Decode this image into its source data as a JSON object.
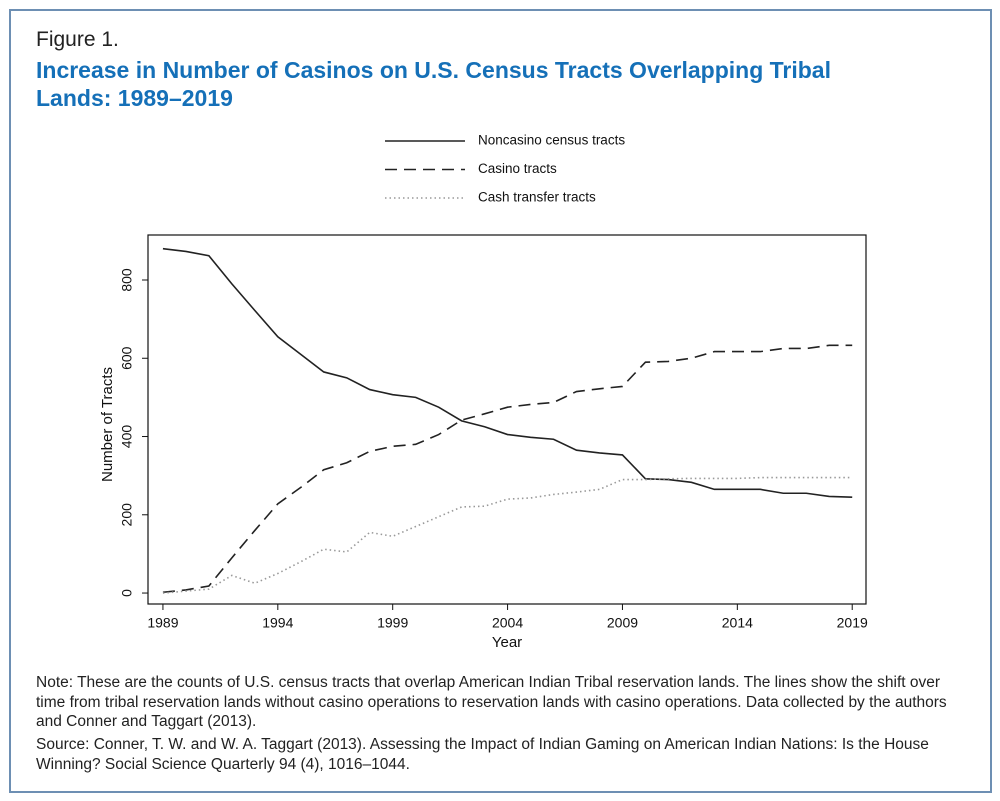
{
  "figure_label": "Figure 1.",
  "note": "Note: These are the counts of U.S. census tracts that overlap American Indian Tribal reservation lands. The lines show the shift over time from tribal reservation lands without casino operations to reservation lands with casino operations. Data collected by the authors and Conner and Taggart (2013).",
  "source": "Source: Conner, T. W. and W. A. Taggart (2013). Assessing the Impact of Indian Gaming on American Indian Nations: Is the House Winning? Social Science Quarterly 94 (4), 1016–1044.",
  "chart_data": {
    "type": "line",
    "title": "Increase in Number of Casinos on U.S. Census Tracts Overlapping Tribal Lands: 1989–2019",
    "x_label": "Year",
    "y_label": "Number of Tracts",
    "x": [
      1989,
      1990,
      1991,
      1992,
      1993,
      1994,
      1995,
      1996,
      1997,
      1998,
      1999,
      2000,
      2001,
      2002,
      2003,
      2004,
      2005,
      2006,
      2007,
      2008,
      2009,
      2010,
      2011,
      2012,
      2013,
      2014,
      2015,
      2016,
      2017,
      2018,
      2019
    ],
    "series": [
      {
        "name": "Noncasino census tracts",
        "color": "#222222",
        "style": "solid",
        "values": [
          880,
          873,
          862,
          790,
          722,
          655,
          610,
          565,
          550,
          520,
          507,
          500,
          475,
          440,
          425,
          405,
          398,
          393,
          365,
          358,
          353,
          292,
          290,
          283,
          265,
          265,
          265,
          255,
          255,
          247,
          245
        ]
      },
      {
        "name": "Casino tracts",
        "color": "#222222",
        "style": "dashed",
        "values": [
          2,
          8,
          18,
          90,
          160,
          228,
          270,
          315,
          333,
          362,
          375,
          380,
          405,
          442,
          458,
          475,
          482,
          487,
          515,
          522,
          528,
          590,
          592,
          600,
          617,
          617,
          617,
          625,
          625,
          633,
          633
        ]
      },
      {
        "name": "Cash transfer tracts",
        "color": "#999999",
        "style": "dotted",
        "values": [
          0,
          5,
          10,
          45,
          25,
          50,
          80,
          112,
          105,
          155,
          145,
          170,
          195,
          220,
          222,
          240,
          243,
          252,
          258,
          265,
          290,
          290,
          292,
          293,
          293,
          293,
          295,
          295,
          295,
          295,
          295
        ]
      }
    ],
    "xlim": [
      1988.35,
      2019.6
    ],
    "ylim": [
      -28,
      915
    ],
    "xticks": [
      1989,
      1994,
      1999,
      2004,
      2009,
      2014,
      2019
    ],
    "yticks": [
      0,
      200,
      400,
      600,
      800
    ],
    "grid": false,
    "legend": "top"
  }
}
